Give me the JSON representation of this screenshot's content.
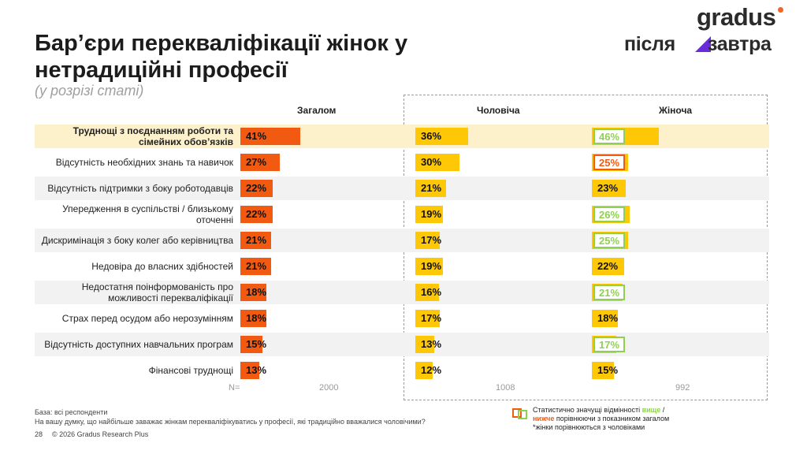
{
  "header": {
    "title": "Бар’єри перекваліфікації жінок у нетрадиційні професії",
    "subtitle": "(у розрізі статі)",
    "logo_gradus": "gradus",
    "logo_pislya": "після",
    "logo_zavtra": "завтра"
  },
  "colors": {
    "orange": "#f25a12",
    "yellow": "#ffc807",
    "higher": "#8fd14f",
    "lower": "#f25a12",
    "highlight_row": "#fdf1cb"
  },
  "chart_data": {
    "type": "bar",
    "columns": [
      "Загалом",
      "Чоловіча",
      "Жіноча"
    ],
    "categories": [
      "Труднощі з поєднанням роботи та сімейних обов’язків",
      "Відсутність необхідних знань та навичок",
      "Відсутність підтримки з боку роботодавців",
      "Упередження в суспільстві / близькому оточенні",
      "Дискримінація з боку колег або керівництва",
      "Недовіра до власних здібностей",
      "Недостатня поінформованість про можливості перекваліфікації",
      "Страх перед осудом або нерозумінням",
      "Відсутність доступних навчальних програм",
      "Фінансові труднощі"
    ],
    "series": [
      {
        "name": "Загалом",
        "values": [
          41,
          27,
          22,
          22,
          21,
          21,
          18,
          18,
          15,
          13
        ],
        "labels": [
          "41%",
          "27%",
          "22%",
          "22%",
          "21%",
          "21%",
          "18%",
          "18%",
          "15%",
          "13%"
        ]
      },
      {
        "name": "Чоловіча",
        "values": [
          36,
          30,
          21,
          19,
          17,
          19,
          16,
          17,
          13,
          12
        ],
        "labels": [
          "36%",
          "30%",
          "21%",
          "19%",
          "17%",
          "19%",
          "16%",
          "17%",
          "13%",
          "12%"
        ]
      },
      {
        "name": "Жіноча",
        "values": [
          46,
          25,
          23,
          26,
          25,
          22,
          21,
          18,
          17,
          15
        ],
        "labels": [
          "46%",
          "25%",
          "23%",
          "26%",
          "25%",
          "22%",
          "21%",
          "18%",
          "17%",
          "15%"
        ],
        "significance": [
          "higher",
          "lower",
          "none",
          "higher",
          "higher",
          "none",
          "higher",
          "none",
          "higher",
          "none"
        ]
      }
    ],
    "highlighted_category": "Труднощі з поєднанням роботи та сімейних обов’язків",
    "n": {
      "label": "N=",
      "values": [
        "2000",
        "1008",
        "992"
      ]
    }
  },
  "footer": {
    "base": "База: всі респонденти",
    "question": "На вашу думку, що найбільше заважає жінкам перекваліфікуватись у професії, які традиційно вважалися чоловічими?",
    "page": "28",
    "copyright": "© 2026 Gradus Research Plus"
  },
  "legend": {
    "line1_start": "Статистично значущі відмінності",
    "higher": "вище",
    "slash": "/",
    "lower": "нижче",
    "line2_rest": "порівнюючи з показником загалом",
    "line3": "*жінки порівнюються з чоловіками"
  }
}
